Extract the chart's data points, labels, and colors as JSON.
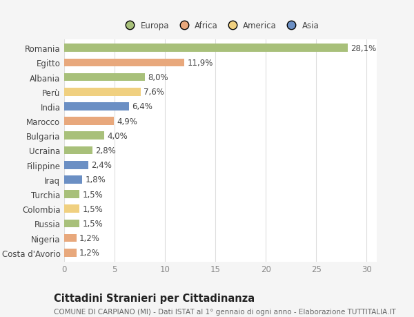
{
  "categories": [
    "Romania",
    "Egitto",
    "Albania",
    "Perù",
    "India",
    "Marocco",
    "Bulgaria",
    "Ucraina",
    "Filippine",
    "Iraq",
    "Turchia",
    "Colombia",
    "Russia",
    "Nigeria",
    "Costa d'Avorio"
  ],
  "values": [
    28.1,
    11.9,
    8.0,
    7.6,
    6.4,
    4.9,
    4.0,
    2.8,
    2.4,
    1.8,
    1.5,
    1.5,
    1.5,
    1.2,
    1.2
  ],
  "labels": [
    "28,1%",
    "11,9%",
    "8,0%",
    "7,6%",
    "6,4%",
    "4,9%",
    "4,0%",
    "2,8%",
    "2,4%",
    "1,8%",
    "1,5%",
    "1,5%",
    "1,5%",
    "1,2%",
    "1,2%"
  ],
  "colors": [
    "#a8c07a",
    "#e8a87c",
    "#a8c07a",
    "#f0d080",
    "#6b8fc4",
    "#e8a87c",
    "#a8c07a",
    "#a8c07a",
    "#6b8fc4",
    "#6b8fc4",
    "#a8c07a",
    "#f0d080",
    "#a8c07a",
    "#e8a87c",
    "#e8a87c"
  ],
  "legend_labels": [
    "Europa",
    "Africa",
    "America",
    "Asia"
  ],
  "legend_colors": [
    "#a8c07a",
    "#e8a87c",
    "#f0d080",
    "#6b8fc4"
  ],
  "title": "Cittadini Stranieri per Cittadinanza",
  "subtitle": "COMUNE DI CARPIANO (MI) - Dati ISTAT al 1° gennaio di ogni anno - Elaborazione TUTTITALIA.IT",
  "xlim": [
    0,
    31
  ],
  "xticks": [
    0,
    5,
    10,
    15,
    20,
    25,
    30
  ],
  "background_color": "#f5f5f5",
  "plot_bg_color": "#ffffff",
  "grid_color": "#dddddd",
  "bar_height": 0.55,
  "label_fontsize": 8.5,
  "tick_fontsize": 8.5,
  "title_fontsize": 10.5,
  "subtitle_fontsize": 7.5
}
